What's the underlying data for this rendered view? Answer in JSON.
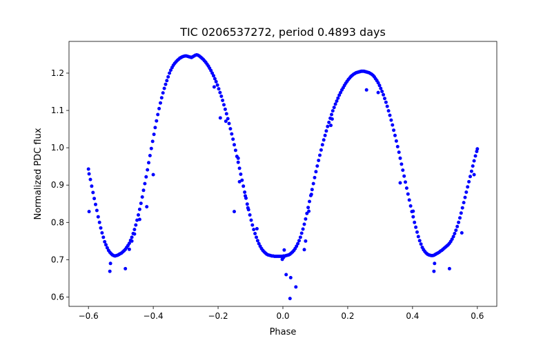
{
  "chart_data": {
    "type": "scatter",
    "title": "TIC 0206537272, period 0.4893 days",
    "xlabel": "Phase",
    "ylabel": "Normalized PDC flux",
    "xlim": [
      -0.66,
      0.66
    ],
    "ylim": [
      0.575,
      1.285
    ],
    "xticks": [
      -0.6,
      -0.4,
      -0.2,
      0.0,
      0.2,
      0.4,
      0.6
    ],
    "xtick_labels": [
      "−0.6",
      "−0.4",
      "−0.2",
      "0.0",
      "0.2",
      "0.4",
      "0.6"
    ],
    "yticks": [
      0.6,
      0.7,
      0.8,
      0.9,
      1.0,
      1.1,
      1.2
    ],
    "ytick_labels": [
      "0.6",
      "0.7",
      "0.8",
      "0.9",
      "1.0",
      "1.1",
      "1.2"
    ],
    "grid": false,
    "marker_color": "#0000ff",
    "points": [
      [
        -0.6,
        0.943
      ],
      [
        -0.598,
        0.93
      ],
      [
        -0.594,
        0.915
      ],
      [
        -0.59,
        0.897
      ],
      [
        -0.586,
        0.88
      ],
      [
        -0.582,
        0.864
      ],
      [
        -0.578,
        0.848
      ],
      [
        -0.574,
        0.832
      ],
      [
        -0.57,
        0.815
      ],
      [
        -0.566,
        0.8
      ],
      [
        -0.562,
        0.785
      ],
      [
        -0.558,
        0.772
      ],
      [
        -0.554,
        0.76
      ],
      [
        -0.55,
        0.748
      ],
      [
        -0.546,
        0.74
      ],
      [
        -0.542,
        0.732
      ],
      [
        -0.538,
        0.725
      ],
      [
        -0.534,
        0.72
      ],
      [
        -0.53,
        0.716
      ],
      [
        -0.526,
        0.713
      ],
      [
        -0.522,
        0.711
      ],
      [
        -0.518,
        0.71
      ],
      [
        -0.514,
        0.711
      ],
      [
        -0.51,
        0.712
      ],
      [
        -0.506,
        0.714
      ],
      [
        -0.502,
        0.716
      ],
      [
        -0.498,
        0.718
      ],
      [
        -0.494,
        0.721
      ],
      [
        -0.49,
        0.724
      ],
      [
        -0.486,
        0.728
      ],
      [
        -0.482,
        0.733
      ],
      [
        -0.478,
        0.738
      ],
      [
        -0.474,
        0.744
      ],
      [
        -0.47,
        0.752
      ],
      [
        -0.466,
        0.76
      ],
      [
        -0.462,
        0.77
      ],
      [
        -0.458,
        0.781
      ],
      [
        -0.454,
        0.793
      ],
      [
        -0.45,
        0.806
      ],
      [
        -0.446,
        0.82
      ],
      [
        -0.442,
        0.835
      ],
      [
        -0.438,
        0.851
      ],
      [
        -0.434,
        0.868
      ],
      [
        -0.43,
        0.886
      ],
      [
        -0.426,
        0.904
      ],
      [
        -0.422,
        0.922
      ],
      [
        -0.418,
        0.941
      ],
      [
        -0.414,
        0.96
      ],
      [
        -0.41,
        0.979
      ],
      [
        -0.406,
        0.998
      ],
      [
        -0.402,
        1.017
      ],
      [
        -0.398,
        1.036
      ],
      [
        -0.394,
        1.054
      ],
      [
        -0.39,
        1.072
      ],
      [
        -0.386,
        1.089
      ],
      [
        -0.382,
        1.105
      ],
      [
        -0.378,
        1.12
      ],
      [
        -0.374,
        1.134
      ],
      [
        -0.37,
        1.147
      ],
      [
        -0.366,
        1.159
      ],
      [
        -0.362,
        1.17
      ],
      [
        -0.358,
        1.18
      ],
      [
        -0.354,
        1.19
      ],
      [
        -0.35,
        1.2
      ],
      [
        -0.346,
        1.208
      ],
      [
        -0.342,
        1.215
      ],
      [
        -0.338,
        1.221
      ],
      [
        -0.334,
        1.226
      ],
      [
        -0.33,
        1.23
      ],
      [
        -0.326,
        1.234
      ],
      [
        -0.322,
        1.237
      ],
      [
        -0.318,
        1.24
      ],
      [
        -0.314,
        1.242
      ],
      [
        -0.31,
        1.244
      ],
      [
        -0.306,
        1.245
      ],
      [
        -0.302,
        1.246
      ],
      [
        -0.298,
        1.246
      ],
      [
        -0.294,
        1.245
      ],
      [
        -0.29,
        1.244
      ],
      [
        -0.286,
        1.243
      ],
      [
        -0.282,
        1.242
      ],
      [
        -0.278,
        1.244
      ],
      [
        -0.274,
        1.246
      ],
      [
        -0.27,
        1.248
      ],
      [
        -0.266,
        1.249
      ],
      [
        -0.262,
        1.248
      ],
      [
        -0.258,
        1.246
      ],
      [
        -0.254,
        1.243
      ],
      [
        -0.25,
        1.24
      ],
      [
        -0.246,
        1.237
      ],
      [
        -0.242,
        1.233
      ],
      [
        -0.238,
        1.229
      ],
      [
        -0.234,
        1.224
      ],
      [
        -0.23,
        1.219
      ],
      [
        -0.226,
        1.213
      ],
      [
        -0.222,
        1.207
      ],
      [
        -0.218,
        1.2
      ],
      [
        -0.214,
        1.193
      ],
      [
        -0.21,
        1.185
      ],
      [
        -0.206,
        1.177
      ],
      [
        -0.202,
        1.168
      ],
      [
        -0.198,
        1.158
      ],
      [
        -0.194,
        1.148
      ],
      [
        -0.19,
        1.138
      ],
      [
        -0.186,
        1.127
      ],
      [
        -0.182,
        1.115
      ],
      [
        -0.178,
        1.103
      ],
      [
        -0.174,
        1.091
      ],
      [
        -0.17,
        1.078
      ],
      [
        -0.166,
        1.065
      ],
      [
        -0.162,
        1.051
      ],
      [
        -0.158,
        1.037
      ],
      [
        -0.154,
        1.023
      ],
      [
        -0.15,
        1.008
      ],
      [
        -0.146,
        0.993
      ],
      [
        -0.142,
        0.977
      ],
      [
        -0.138,
        0.961
      ],
      [
        -0.134,
        0.945
      ],
      [
        -0.13,
        0.929
      ],
      [
        -0.126,
        0.913
      ],
      [
        -0.122,
        0.897
      ],
      [
        -0.118,
        0.881
      ],
      [
        -0.114,
        0.865
      ],
      [
        -0.11,
        0.849
      ],
      [
        -0.106,
        0.834
      ],
      [
        -0.102,
        0.82
      ],
      [
        -0.098,
        0.806
      ],
      [
        -0.094,
        0.793
      ],
      [
        -0.09,
        0.781
      ],
      [
        -0.086,
        0.77
      ],
      [
        -0.082,
        0.76
      ],
      [
        -0.078,
        0.751
      ],
      [
        -0.074,
        0.743
      ],
      [
        -0.07,
        0.736
      ],
      [
        -0.066,
        0.73
      ],
      [
        -0.062,
        0.725
      ],
      [
        -0.058,
        0.721
      ],
      [
        -0.054,
        0.718
      ],
      [
        -0.05,
        0.715
      ],
      [
        -0.046,
        0.713
      ],
      [
        -0.042,
        0.712
      ],
      [
        -0.038,
        0.711
      ],
      [
        -0.034,
        0.71
      ],
      [
        -0.03,
        0.71
      ],
      [
        -0.026,
        0.709
      ],
      [
        -0.022,
        0.709
      ],
      [
        -0.018,
        0.709
      ],
      [
        -0.014,
        0.709
      ],
      [
        -0.01,
        0.709
      ],
      [
        -0.006,
        0.709
      ],
      [
        -0.002,
        0.709
      ],
      [
        0.002,
        0.71
      ],
      [
        0.006,
        0.71
      ],
      [
        0.01,
        0.711
      ],
      [
        0.014,
        0.712
      ],
      [
        0.018,
        0.713
      ],
      [
        0.022,
        0.715
      ],
      [
        0.026,
        0.718
      ],
      [
        0.03,
        0.721
      ],
      [
        0.034,
        0.725
      ],
      [
        0.038,
        0.73
      ],
      [
        0.042,
        0.736
      ],
      [
        0.046,
        0.743
      ],
      [
        0.05,
        0.751
      ],
      [
        0.054,
        0.76
      ],
      [
        0.058,
        0.771
      ],
      [
        0.062,
        0.782
      ],
      [
        0.066,
        0.795
      ],
      [
        0.07,
        0.809
      ],
      [
        0.074,
        0.824
      ],
      [
        0.078,
        0.84
      ],
      [
        0.082,
        0.856
      ],
      [
        0.086,
        0.872
      ],
      [
        0.09,
        0.888
      ],
      [
        0.094,
        0.904
      ],
      [
        0.098,
        0.92
      ],
      [
        0.102,
        0.936
      ],
      [
        0.106,
        0.951
      ],
      [
        0.11,
        0.966
      ],
      [
        0.114,
        0.98
      ],
      [
        0.118,
        0.994
      ],
      [
        0.122,
        1.008
      ],
      [
        0.126,
        1.021
      ],
      [
        0.13,
        1.033
      ],
      [
        0.134,
        1.045
      ],
      [
        0.138,
        1.057
      ],
      [
        0.142,
        1.068
      ],
      [
        0.146,
        1.079
      ],
      [
        0.15,
        1.089
      ],
      [
        0.154,
        1.099
      ],
      [
        0.158,
        1.108
      ],
      [
        0.162,
        1.117
      ],
      [
        0.166,
        1.125
      ],
      [
        0.17,
        1.133
      ],
      [
        0.174,
        1.141
      ],
      [
        0.178,
        1.148
      ],
      [
        0.182,
        1.155
      ],
      [
        0.186,
        1.161
      ],
      [
        0.19,
        1.167
      ],
      [
        0.194,
        1.173
      ],
      [
        0.198,
        1.178
      ],
      [
        0.202,
        1.183
      ],
      [
        0.206,
        1.187
      ],
      [
        0.21,
        1.191
      ],
      [
        0.214,
        1.194
      ],
      [
        0.218,
        1.197
      ],
      [
        0.222,
        1.199
      ],
      [
        0.226,
        1.201
      ],
      [
        0.23,
        1.202
      ],
      [
        0.234,
        1.203
      ],
      [
        0.238,
        1.204
      ],
      [
        0.242,
        1.205
      ],
      [
        0.246,
        1.205
      ],
      [
        0.25,
        1.205
      ],
      [
        0.254,
        1.204
      ],
      [
        0.258,
        1.203
      ],
      [
        0.262,
        1.202
      ],
      [
        0.266,
        1.201
      ],
      [
        0.27,
        1.199
      ],
      [
        0.274,
        1.197
      ],
      [
        0.278,
        1.194
      ],
      [
        0.282,
        1.19
      ],
      [
        0.286,
        1.185
      ],
      [
        0.29,
        1.18
      ],
      [
        0.294,
        1.174
      ],
      [
        0.298,
        1.167
      ],
      [
        0.302,
        1.159
      ],
      [
        0.306,
        1.151
      ],
      [
        0.31,
        1.142
      ],
      [
        0.314,
        1.132
      ],
      [
        0.318,
        1.122
      ],
      [
        0.322,
        1.111
      ],
      [
        0.326,
        1.099
      ],
      [
        0.33,
        1.087
      ],
      [
        0.334,
        1.074
      ],
      [
        0.338,
        1.061
      ],
      [
        0.342,
        1.047
      ],
      [
        0.346,
        1.033
      ],
      [
        0.35,
        1.018
      ],
      [
        0.354,
        1.003
      ],
      [
        0.358,
        0.988
      ],
      [
        0.362,
        0.972
      ],
      [
        0.366,
        0.956
      ],
      [
        0.37,
        0.94
      ],
      [
        0.374,
        0.924
      ],
      [
        0.378,
        0.908
      ],
      [
        0.382,
        0.892
      ],
      [
        0.386,
        0.876
      ],
      [
        0.39,
        0.86
      ],
      [
        0.394,
        0.844
      ],
      [
        0.398,
        0.829
      ],
      [
        0.402,
        0.815
      ],
      [
        0.406,
        0.8
      ],
      [
        0.41,
        0.787
      ],
      [
        0.414,
        0.774
      ],
      [
        0.418,
        0.762
      ],
      [
        0.422,
        0.751
      ],
      [
        0.426,
        0.742
      ],
      [
        0.43,
        0.733
      ],
      [
        0.434,
        0.727
      ],
      [
        0.438,
        0.722
      ],
      [
        0.442,
        0.718
      ],
      [
        0.446,
        0.715
      ],
      [
        0.45,
        0.713
      ],
      [
        0.454,
        0.712
      ],
      [
        0.458,
        0.711
      ],
      [
        0.462,
        0.711
      ],
      [
        0.466,
        0.712
      ],
      [
        0.47,
        0.714
      ],
      [
        0.474,
        0.716
      ],
      [
        0.478,
        0.718
      ],
      [
        0.482,
        0.72
      ],
      [
        0.486,
        0.723
      ],
      [
        0.49,
        0.725
      ],
      [
        0.494,
        0.728
      ],
      [
        0.498,
        0.731
      ],
      [
        0.502,
        0.734
      ],
      [
        0.506,
        0.737
      ],
      [
        0.51,
        0.74
      ],
      [
        0.514,
        0.744
      ],
      [
        0.518,
        0.749
      ],
      [
        0.522,
        0.755
      ],
      [
        0.526,
        0.762
      ],
      [
        0.53,
        0.77
      ],
      [
        0.534,
        0.779
      ],
      [
        0.538,
        0.789
      ],
      [
        0.542,
        0.8
      ],
      [
        0.546,
        0.812
      ],
      [
        0.55,
        0.825
      ],
      [
        0.554,
        0.839
      ],
      [
        0.558,
        0.853
      ],
      [
        0.562,
        0.867
      ],
      [
        0.566,
        0.881
      ],
      [
        0.57,
        0.895
      ],
      [
        0.574,
        0.909
      ],
      [
        0.578,
        0.923
      ],
      [
        0.582,
        0.937
      ],
      [
        0.586,
        0.951
      ],
      [
        0.59,
        0.965
      ],
      [
        0.594,
        0.978
      ],
      [
        0.598,
        0.99
      ],
      [
        0.6,
        0.997
      ],
      [
        -0.598,
        0.829
      ],
      [
        -0.534,
        0.669
      ],
      [
        -0.532,
        0.69
      ],
      [
        -0.486,
        0.676
      ],
      [
        -0.474,
        0.728
      ],
      [
        -0.466,
        0.75
      ],
      [
        -0.458,
        0.769
      ],
      [
        -0.442,
        0.808
      ],
      [
        -0.42,
        0.842
      ],
      [
        -0.4,
        0.928
      ],
      [
        -0.212,
        1.163
      ],
      [
        -0.193,
        1.08
      ],
      [
        -0.176,
        1.071
      ],
      [
        -0.15,
        0.829
      ],
      [
        -0.138,
        0.972
      ],
      [
        -0.134,
        0.909
      ],
      [
        -0.116,
        0.871
      ],
      [
        -0.108,
        0.839
      ],
      [
        -0.08,
        0.783
      ],
      [
        -0.002,
        0.701
      ],
      [
        0.002,
        0.706
      ],
      [
        0.004,
        0.726
      ],
      [
        0.01,
        0.66
      ],
      [
        0.022,
        0.596
      ],
      [
        0.024,
        0.652
      ],
      [
        0.04,
        0.627
      ],
      [
        0.066,
        0.727
      ],
      [
        0.07,
        0.75
      ],
      [
        0.08,
        0.83
      ],
      [
        0.088,
        0.875
      ],
      [
        0.148,
        1.06
      ],
      [
        0.152,
        1.077
      ],
      [
        0.258,
        1.155
      ],
      [
        0.294,
        1.148
      ],
      [
        0.362,
        0.906
      ],
      [
        0.402,
        0.83
      ],
      [
        0.466,
        0.669
      ],
      [
        0.468,
        0.69
      ],
      [
        0.514,
        0.676
      ],
      [
        0.552,
        0.772
      ],
      [
        0.59,
        0.928
      ]
    ]
  }
}
